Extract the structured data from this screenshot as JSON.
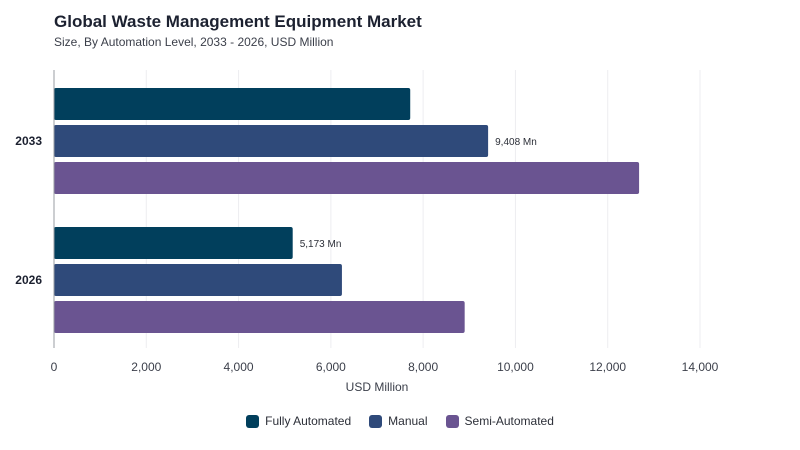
{
  "header": {
    "title": "Global Waste Management Equipment Market",
    "subtitle": "Size, By Automation Level, 2033 - 2026, USD Million"
  },
  "chart_data": {
    "type": "bar",
    "orientation": "horizontal",
    "categories": [
      "2033",
      "2026"
    ],
    "series": [
      {
        "name": "Fully Automated",
        "color": "#013f5c",
        "values": [
          7720,
          5173
        ]
      },
      {
        "name": "Manual",
        "color": "#2f4a7a",
        "values": [
          9408,
          6240
        ]
      },
      {
        "name": "Semi-Automated",
        "color": "#6a5491",
        "values": [
          12680,
          8900
        ]
      }
    ],
    "data_labels": [
      {
        "category": "2033",
        "series": "Manual",
        "text": "9,408 Mn"
      },
      {
        "category": "2026",
        "series": "Fully Automated",
        "text": "5,173 Mn"
      }
    ],
    "xlabel": "USD Million",
    "xlim": [
      0,
      14000
    ],
    "xticks": [
      0,
      2000,
      4000,
      6000,
      8000,
      10000,
      12000,
      14000
    ],
    "xtick_labels": [
      "0",
      "2,000",
      "4,000",
      "6,000",
      "8,000",
      "10,000",
      "12,000",
      "14,000"
    ],
    "grid": true,
    "legend_position": "bottom-center"
  }
}
